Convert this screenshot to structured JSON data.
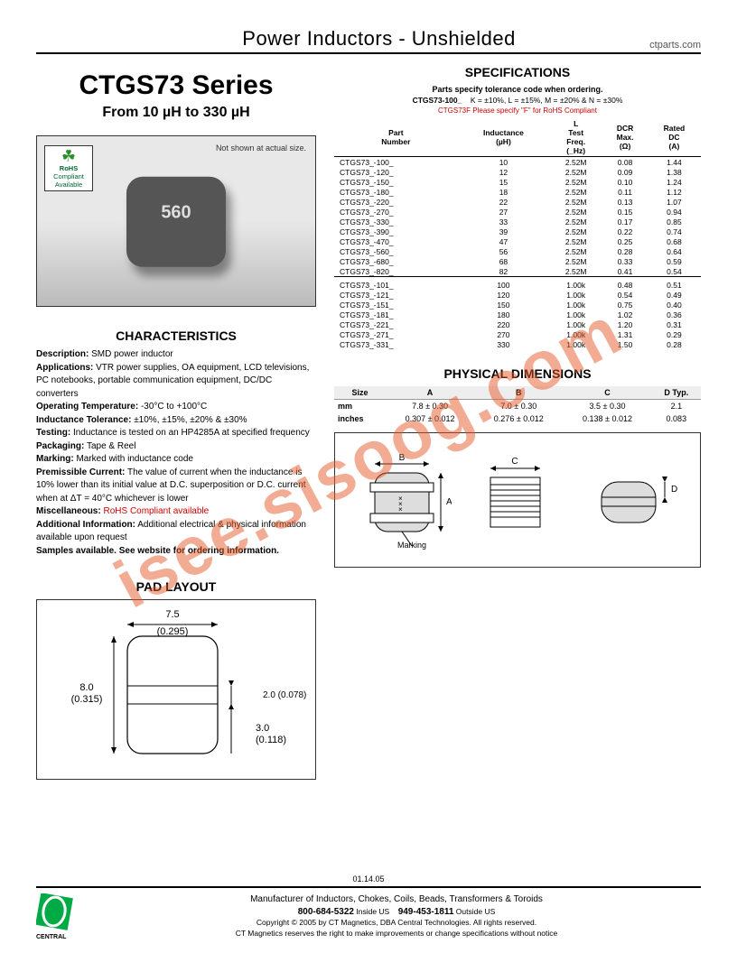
{
  "header": {
    "title": "Power Inductors - Unshielded",
    "url": "ctparts.com"
  },
  "series": {
    "title": "CTGS73 Series",
    "sub": "From 10 µH to 330 µH"
  },
  "photo": {
    "note": "Not shown at actual size.",
    "marking": "560",
    "rohs_l1": "RoHS",
    "rohs_l2": "Compliant",
    "rohs_l3": "Available"
  },
  "char": {
    "heading": "CHARACTERISTICS",
    "description_l": "Description:",
    "description_v": "SMD power inductor",
    "apps_l": "Applications:",
    "apps_v": "VTR power supplies, OA equipment, LCD televisions, PC notebooks, portable communication equipment, DC/DC converters",
    "optemp_l": "Operating Temperature:",
    "optemp_v": "-30°C to +100°C",
    "indtol_l": "Inductance Tolerance:",
    "indtol_v": "±10%, ±15%, ±20% & ±30%",
    "test_l": "Testing:",
    "test_v": "Inductance is tested on an HP4285A at specified frequency",
    "pack_l": "Packaging:",
    "pack_v": "Tape & Reel",
    "mark_l": "Marking:",
    "mark_v": "Marked with inductance code",
    "perm_l": "Premissible Current:",
    "perm_v": "The value of current when the inductance is 10% lower than its initial value at D.C. superposition or D.C. current when at ΔT = 40°C whichever is lower",
    "misc_l": "Miscellaneous:",
    "misc_v": "RoHS Compliant available",
    "addl_l": "Additional Information:",
    "addl_v": "Additional electrical & physical information available upon request",
    "samples": "Samples available. See website for ordering information."
  },
  "spec": {
    "heading": "SPECIFICATIONS",
    "order": "Parts specify tolerance code when ordering.",
    "codes_prefix": "CTGS73-100_",
    "codes": "K = ±10%, L = ±15%, M = ±20% & N = ±30%",
    "rohs_prefix": "CTGS73F",
    "rohs_text": "Please specify \"F\" for RoHS Compliant",
    "cols": [
      "Part Number",
      "Inductance (µH)",
      "L Test Freq. (_Hz)",
      "DCR Max. (Ω)",
      "Rated DC (A)"
    ],
    "rows1": [
      [
        "CTGS73_-100_",
        "10",
        "2.52M",
        "0.08",
        "1.44"
      ],
      [
        "CTGS73_-120_",
        "12",
        "2.52M",
        "0.09",
        "1.38"
      ],
      [
        "CTGS73_-150_",
        "15",
        "2.52M",
        "0.10",
        "1.24"
      ],
      [
        "CTGS73_-180_",
        "18",
        "2.52M",
        "0.11",
        "1.12"
      ],
      [
        "CTGS73_-220_",
        "22",
        "2.52M",
        "0.13",
        "1.07"
      ],
      [
        "CTGS73_-270_",
        "27",
        "2.52M",
        "0.15",
        "0.94"
      ],
      [
        "CTGS73_-330_",
        "33",
        "2.52M",
        "0.17",
        "0.85"
      ],
      [
        "CTGS73_-390_",
        "39",
        "2.52M",
        "0.22",
        "0.74"
      ],
      [
        "CTGS73_-470_",
        "47",
        "2.52M",
        "0.25",
        "0.68"
      ],
      [
        "CTGS73_-560_",
        "56",
        "2.52M",
        "0.28",
        "0.64"
      ],
      [
        "CTGS73_-680_",
        "68",
        "2.52M",
        "0.33",
        "0.59"
      ],
      [
        "CTGS73_-820_",
        "82",
        "2.52M",
        "0.41",
        "0.54"
      ]
    ],
    "rows2": [
      [
        "CTGS73_-101_",
        "100",
        "1.00k",
        "0.48",
        "0.51"
      ],
      [
        "CTGS73_-121_",
        "120",
        "1.00k",
        "0.54",
        "0.49"
      ],
      [
        "CTGS73_-151_",
        "150",
        "1.00k",
        "0.75",
        "0.40"
      ],
      [
        "CTGS73_-181_",
        "180",
        "1.00k",
        "1.02",
        "0.36"
      ],
      [
        "CTGS73_-221_",
        "220",
        "1.00k",
        "1.20",
        "0.31"
      ],
      [
        "CTGS73_-271_",
        "270",
        "1.00k",
        "1.31",
        "0.29"
      ],
      [
        "CTGS73_-331_",
        "330",
        "1.00k",
        "1.50",
        "0.28"
      ]
    ]
  },
  "dim": {
    "heading": "PHYSICAL DIMENSIONS",
    "cols": [
      "Size",
      "A",
      "B",
      "C",
      "D Typ."
    ],
    "mm": [
      "mm",
      "7.8 ± 0.30",
      "7.0 ± 0.30",
      "3.5 ± 0.30",
      "2.1"
    ],
    "inches": [
      "inches",
      "0.307 ± 0.012",
      "0.276 ± 0.012",
      "0.138 ± 0.012",
      "0.083"
    ],
    "marking_label": "Marking"
  },
  "pad": {
    "heading": "PAD LAYOUT",
    "w": "7.5",
    "w_in": "(0.295)",
    "h": "8.0",
    "h_in": "(0.315)",
    "g": "2.0 (0.078)",
    "p": "3.0",
    "p_in": "(0.118)"
  },
  "watermark": "isee.sisoog.com",
  "footer": {
    "date": "01.14.05",
    "tag": "Manufacturer of Inductors, Chokes, Coils, Beads, Transformers & Toroids",
    "phone1": "800-684-5322",
    "loc1": "Inside US",
    "phone2": "949-453-1811",
    "loc2": "Outside US",
    "copy": "Copyright © 2005 by CT Magnetics, DBA Central Technologies. All rights reserved.",
    "note": "CT Magnetics reserves the right to make improvements or change specifications without notice",
    "logo": "CENTRAL"
  }
}
